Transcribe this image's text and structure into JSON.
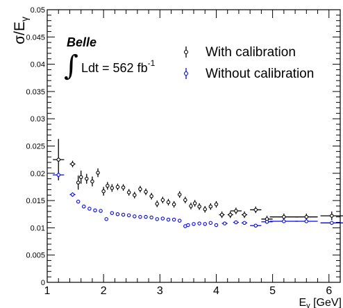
{
  "chart_data": {
    "type": "scatter",
    "xlabel": "Eγ [GeV]",
    "xlabel_main": "E",
    "xlabel_sub": "γ",
    "xlabel_unit": " [GeV]",
    "ylabel_main": "σ/E",
    "ylabel_sub": "γ",
    "xlim": [
      1.0,
      6.2
    ],
    "ylim": [
      0.0,
      0.05
    ],
    "x_ticks": [
      1,
      2,
      3,
      4,
      5,
      6
    ],
    "x_tick_labels": [
      "1",
      "2",
      "3",
      "4",
      "5",
      "6"
    ],
    "y_ticks": [
      0,
      0.005,
      0.01,
      0.015,
      0.02,
      0.025,
      0.03,
      0.035,
      0.04,
      0.045,
      0.05
    ],
    "y_tick_labels": [
      "0",
      "0.005",
      "0.01",
      "0.015",
      "0.02",
      "0.025",
      "0.03",
      "0.035",
      "0.04",
      "0.045",
      "0.05"
    ],
    "experiment_label": "Belle",
    "luminosity_text": "Ldt = 562 fb",
    "luminosity_exponent": "-1",
    "legend_position": "top-right",
    "series": [
      {
        "name": "With calibration",
        "color": "#000000",
        "points": [
          {
            "x": 1.2,
            "y": 0.0225,
            "xerr": 0.1,
            "yerr": 0.0038
          },
          {
            "x": 1.45,
            "y": 0.0217,
            "xerr": 0.05,
            "yerr": 0.0006
          },
          {
            "x": 1.55,
            "y": 0.0183,
            "xerr": 0.025,
            "yerr": 0.0013
          },
          {
            "x": 1.6,
            "y": 0.0193,
            "xerr": 0.025,
            "yerr": 0.0012
          },
          {
            "x": 1.7,
            "y": 0.019,
            "xerr": 0.025,
            "yerr": 0.0009
          },
          {
            "x": 1.8,
            "y": 0.0185,
            "xerr": 0.025,
            "yerr": 0.0009
          },
          {
            "x": 1.9,
            "y": 0.0201,
            "xerr": 0.025,
            "yerr": 0.0008
          },
          {
            "x": 2.0,
            "y": 0.0167,
            "xerr": 0.025,
            "yerr": 0.0008
          },
          {
            "x": 2.07,
            "y": 0.0177,
            "xerr": 0.025,
            "yerr": 0.0007
          },
          {
            "x": 2.15,
            "y": 0.0173,
            "xerr": 0.025,
            "yerr": 0.0007
          },
          {
            "x": 2.25,
            "y": 0.0175,
            "xerr": 0.025,
            "yerr": 0.0006
          },
          {
            "x": 2.35,
            "y": 0.0174,
            "xerr": 0.025,
            "yerr": 0.0006
          },
          {
            "x": 2.45,
            "y": 0.0165,
            "xerr": 0.025,
            "yerr": 0.0006
          },
          {
            "x": 2.55,
            "y": 0.016,
            "xerr": 0.025,
            "yerr": 0.0006
          },
          {
            "x": 2.65,
            "y": 0.0171,
            "xerr": 0.025,
            "yerr": 0.0006
          },
          {
            "x": 2.75,
            "y": 0.0166,
            "xerr": 0.025,
            "yerr": 0.0006
          },
          {
            "x": 2.85,
            "y": 0.0158,
            "xerr": 0.025,
            "yerr": 0.0006
          },
          {
            "x": 2.95,
            "y": 0.0144,
            "xerr": 0.025,
            "yerr": 0.0006
          },
          {
            "x": 3.05,
            "y": 0.0151,
            "xerr": 0.025,
            "yerr": 0.0006
          },
          {
            "x": 3.15,
            "y": 0.0147,
            "xerr": 0.025,
            "yerr": 0.0006
          },
          {
            "x": 3.25,
            "y": 0.0143,
            "xerr": 0.025,
            "yerr": 0.0006
          },
          {
            "x": 3.35,
            "y": 0.0161,
            "xerr": 0.025,
            "yerr": 0.0006
          },
          {
            "x": 3.45,
            "y": 0.0151,
            "xerr": 0.025,
            "yerr": 0.0006
          },
          {
            "x": 3.55,
            "y": 0.014,
            "xerr": 0.025,
            "yerr": 0.0006
          },
          {
            "x": 3.62,
            "y": 0.0145,
            "xerr": 0.025,
            "yerr": 0.0006
          },
          {
            "x": 3.7,
            "y": 0.0139,
            "xerr": 0.025,
            "yerr": 0.0006
          },
          {
            "x": 3.8,
            "y": 0.0134,
            "xerr": 0.025,
            "yerr": 0.0006
          },
          {
            "x": 3.9,
            "y": 0.0139,
            "xerr": 0.025,
            "yerr": 0.0006
          },
          {
            "x": 4.0,
            "y": 0.0143,
            "xerr": 0.025,
            "yerr": 0.0006
          },
          {
            "x": 4.1,
            "y": 0.0124,
            "xerr": 0.05,
            "yerr": 0.0006
          },
          {
            "x": 4.25,
            "y": 0.0124,
            "xerr": 0.05,
            "yerr": 0.0006
          },
          {
            "x": 4.35,
            "y": 0.0131,
            "xerr": 0.1,
            "yerr": 0.0006
          },
          {
            "x": 4.5,
            "y": 0.0124,
            "xerr": 0.05,
            "yerr": 0.0006
          },
          {
            "x": 4.7,
            "y": 0.0133,
            "xerr": 0.1,
            "yerr": 0.0006
          },
          {
            "x": 4.9,
            "y": 0.0116,
            "xerr": 0.1,
            "yerr": 0.0006
          },
          {
            "x": 5.2,
            "y": 0.012,
            "xerr": 0.25,
            "yerr": 0.0006
          },
          {
            "x": 5.6,
            "y": 0.012,
            "xerr": 0.2,
            "yerr": 0.0006
          },
          {
            "x": 6.05,
            "y": 0.0122,
            "xerr": 0.2,
            "yerr": 0.0008
          }
        ]
      },
      {
        "name": "Without calibration",
        "color": "#0000ff",
        "points": [
          {
            "x": 1.2,
            "y": 0.0197,
            "xerr": 0.1,
            "yerr": 0.0005
          },
          {
            "x": 1.45,
            "y": 0.0161,
            "xerr": 0.05,
            "yerr": 0.0004
          },
          {
            "x": 1.55,
            "y": 0.0148,
            "xerr": 0.025,
            "yerr": 0.0003
          },
          {
            "x": 1.65,
            "y": 0.0139,
            "xerr": 0.025,
            "yerr": 0.0003
          },
          {
            "x": 1.75,
            "y": 0.0135,
            "xerr": 0.025,
            "yerr": 0.0003
          },
          {
            "x": 1.85,
            "y": 0.0132,
            "xerr": 0.025,
            "yerr": 0.0003
          },
          {
            "x": 1.95,
            "y": 0.0131,
            "xerr": 0.025,
            "yerr": 0.0003
          },
          {
            "x": 2.05,
            "y": 0.0116,
            "xerr": 0.025,
            "yerr": 0.0003
          },
          {
            "x": 2.15,
            "y": 0.0127,
            "xerr": 0.025,
            "yerr": 0.0003
          },
          {
            "x": 2.25,
            "y": 0.0125,
            "xerr": 0.025,
            "yerr": 0.0003
          },
          {
            "x": 2.35,
            "y": 0.0124,
            "xerr": 0.025,
            "yerr": 0.0003
          },
          {
            "x": 2.45,
            "y": 0.0123,
            "xerr": 0.025,
            "yerr": 0.0003
          },
          {
            "x": 2.55,
            "y": 0.0121,
            "xerr": 0.025,
            "yerr": 0.0003
          },
          {
            "x": 2.65,
            "y": 0.012,
            "xerr": 0.025,
            "yerr": 0.0003
          },
          {
            "x": 2.75,
            "y": 0.012,
            "xerr": 0.025,
            "yerr": 0.0003
          },
          {
            "x": 2.85,
            "y": 0.0119,
            "xerr": 0.025,
            "yerr": 0.0003
          },
          {
            "x": 2.95,
            "y": 0.0116,
            "xerr": 0.025,
            "yerr": 0.0003
          },
          {
            "x": 3.05,
            "y": 0.0117,
            "xerr": 0.025,
            "yerr": 0.0003
          },
          {
            "x": 3.15,
            "y": 0.0115,
            "xerr": 0.025,
            "yerr": 0.0003
          },
          {
            "x": 3.25,
            "y": 0.0115,
            "xerr": 0.025,
            "yerr": 0.0003
          },
          {
            "x": 3.35,
            "y": 0.0113,
            "xerr": 0.025,
            "yerr": 0.0003
          },
          {
            "x": 3.45,
            "y": 0.0103,
            "xerr": 0.025,
            "yerr": 0.0003
          },
          {
            "x": 3.5,
            "y": 0.0105,
            "xerr": 0.025,
            "yerr": 0.0003
          },
          {
            "x": 3.6,
            "y": 0.0107,
            "xerr": 0.025,
            "yerr": 0.0003
          },
          {
            "x": 3.7,
            "y": 0.0108,
            "xerr": 0.025,
            "yerr": 0.0003
          },
          {
            "x": 3.8,
            "y": 0.0107,
            "xerr": 0.025,
            "yerr": 0.0003
          },
          {
            "x": 3.9,
            "y": 0.0109,
            "xerr": 0.025,
            "yerr": 0.0003
          },
          {
            "x": 4.0,
            "y": 0.0105,
            "xerr": 0.025,
            "yerr": 0.0003
          },
          {
            "x": 4.15,
            "y": 0.0108,
            "xerr": 0.05,
            "yerr": 0.0003
          },
          {
            "x": 4.35,
            "y": 0.011,
            "xerr": 0.05,
            "yerr": 0.0003
          },
          {
            "x": 4.5,
            "y": 0.0109,
            "xerr": 0.05,
            "yerr": 0.0003
          },
          {
            "x": 4.7,
            "y": 0.0104,
            "xerr": 0.1,
            "yerr": 0.0003
          },
          {
            "x": 4.9,
            "y": 0.0111,
            "xerr": 0.1,
            "yerr": 0.0003
          },
          {
            "x": 5.2,
            "y": 0.0112,
            "xerr": 0.25,
            "yerr": 0.0003
          },
          {
            "x": 5.6,
            "y": 0.0112,
            "xerr": 0.2,
            "yerr": 0.0003
          },
          {
            "x": 6.05,
            "y": 0.0109,
            "xerr": 0.2,
            "yerr": 0.0003
          }
        ]
      }
    ]
  }
}
